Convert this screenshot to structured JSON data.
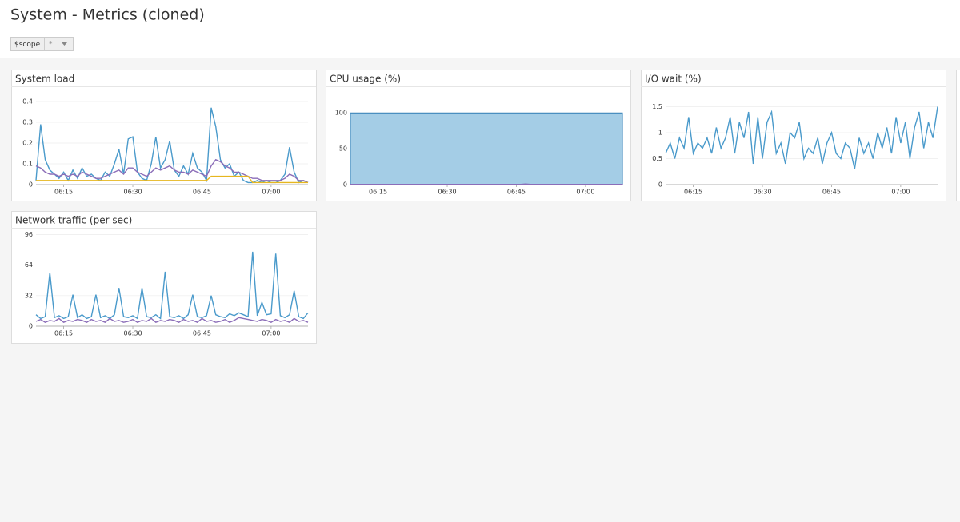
{
  "header": {
    "title": "System - Metrics (cloned)"
  },
  "scope": {
    "label": "$scope",
    "value": "*"
  },
  "chart_data": [
    {
      "type": "line",
      "title": "System load",
      "x": [
        "06:09",
        "06:10",
        "06:11",
        "06:12",
        "06:13",
        "06:14",
        "06:15",
        "06:16",
        "06:17",
        "06:18",
        "06:19",
        "06:20",
        "06:21",
        "06:22",
        "06:23",
        "06:24",
        "06:25",
        "06:26",
        "06:27",
        "06:28",
        "06:29",
        "06:30",
        "06:31",
        "06:32",
        "06:33",
        "06:34",
        "06:35",
        "06:36",
        "06:37",
        "06:38",
        "06:39",
        "06:40",
        "06:41",
        "06:42",
        "06:43",
        "06:44",
        "06:45",
        "06:46",
        "06:47",
        "06:48",
        "06:49",
        "06:50",
        "06:51",
        "06:52",
        "06:53",
        "06:54",
        "06:55",
        "06:56",
        "06:57",
        "06:58",
        "06:59",
        "07:00",
        "07:01",
        "07:02",
        "07:03",
        "07:04",
        "07:05",
        "07:06",
        "07:07",
        "07:08"
      ],
      "xticks": [
        "06:15",
        "06:30",
        "06:45",
        "07:00"
      ],
      "ylim": [
        0,
        0.45
      ],
      "yticks": [
        0,
        0.1,
        0.2,
        0.3,
        0.4
      ],
      "grid": true,
      "series": [
        {
          "color": "#4a9acb",
          "values": [
            0.02,
            0.29,
            0.12,
            0.07,
            0.05,
            0.03,
            0.06,
            0.02,
            0.07,
            0.03,
            0.08,
            0.04,
            0.05,
            0.03,
            0.02,
            0.06,
            0.04,
            0.1,
            0.17,
            0.05,
            0.22,
            0.23,
            0.06,
            0.03,
            0.02,
            0.1,
            0.23,
            0.08,
            0.12,
            0.21,
            0.07,
            0.04,
            0.09,
            0.05,
            0.15,
            0.08,
            0.06,
            0.02,
            0.37,
            0.28,
            0.12,
            0.08,
            0.1,
            0.04,
            0.06,
            0.02,
            0.01,
            0.01,
            0.02,
            0.01,
            0.02,
            0.01,
            0.01,
            0.02,
            0.05,
            0.18,
            0.06,
            0.01,
            0.02,
            0.01
          ]
        },
        {
          "color": "#8b6db8",
          "values": [
            0.09,
            0.08,
            0.06,
            0.05,
            0.05,
            0.04,
            0.05,
            0.04,
            0.05,
            0.04,
            0.06,
            0.05,
            0.04,
            0.03,
            0.03,
            0.04,
            0.05,
            0.06,
            0.07,
            0.05,
            0.08,
            0.08,
            0.06,
            0.05,
            0.04,
            0.06,
            0.08,
            0.07,
            0.08,
            0.09,
            0.07,
            0.06,
            0.06,
            0.05,
            0.07,
            0.06,
            0.05,
            0.04,
            0.09,
            0.12,
            0.11,
            0.09,
            0.08,
            0.06,
            0.06,
            0.05,
            0.04,
            0.03,
            0.03,
            0.02,
            0.02,
            0.02,
            0.02,
            0.02,
            0.03,
            0.05,
            0.04,
            0.02,
            0.02,
            0.01
          ]
        },
        {
          "color": "#e6b61f",
          "values": [
            0.02,
            0.02,
            0.02,
            0.02,
            0.02,
            0.02,
            0.02,
            0.02,
            0.02,
            0.02,
            0.02,
            0.02,
            0.02,
            0.02,
            0.02,
            0.02,
            0.02,
            0.02,
            0.02,
            0.02,
            0.02,
            0.02,
            0.02,
            0.02,
            0.02,
            0.02,
            0.02,
            0.02,
            0.02,
            0.02,
            0.02,
            0.02,
            0.02,
            0.02,
            0.02,
            0.02,
            0.02,
            0.02,
            0.04,
            0.04,
            0.04,
            0.04,
            0.04,
            0.04,
            0.04,
            0.04,
            0.04,
            0.01,
            0.01,
            0.01,
            0.01,
            0.01,
            0.01,
            0.01,
            0.01,
            0.01,
            0.01,
            0.01,
            0.01,
            0.01
          ]
        }
      ]
    },
    {
      "type": "area",
      "title": "CPU usage (%)",
      "x": [
        "06:09",
        "06:10",
        "06:11",
        "06:12",
        "06:13",
        "06:14",
        "06:15",
        "06:16",
        "06:17",
        "06:18",
        "06:19",
        "06:20",
        "06:21",
        "06:22",
        "06:23",
        "06:24",
        "06:25",
        "06:26",
        "06:27",
        "06:28",
        "06:29",
        "06:30",
        "06:31",
        "06:32",
        "06:33",
        "06:34",
        "06:35",
        "06:36",
        "06:37",
        "06:38",
        "06:39",
        "06:40",
        "06:41",
        "06:42",
        "06:43",
        "06:44",
        "06:45",
        "06:46",
        "06:47",
        "06:48",
        "06:49",
        "06:50",
        "06:51",
        "06:52",
        "06:53",
        "06:54",
        "06:55",
        "06:56",
        "06:57",
        "06:58",
        "06:59",
        "07:00",
        "07:01",
        "07:02",
        "07:03",
        "07:04",
        "07:05",
        "07:06",
        "07:07",
        "07:08"
      ],
      "xticks": [
        "06:15",
        "06:30",
        "06:45",
        "07:00"
      ],
      "ylim": [
        0,
        130
      ],
      "yticks": [
        0,
        50,
        100
      ],
      "grid": true,
      "series": [
        {
          "color": "#4a8fc0",
          "fill": "#a4cde6",
          "values": [
            99.5,
            99.5,
            99.5,
            99.5,
            99.5,
            99.5,
            99.5,
            99.5,
            99.5,
            99.5,
            99.5,
            99.5,
            99.5,
            99.5,
            99.5,
            99.5,
            99.5,
            99.5,
            99.5,
            99.5,
            99.5,
            99.5,
            99.5,
            99.5,
            99.5,
            99.5,
            99.5,
            99.5,
            99.5,
            99.5,
            99.5,
            99.5,
            99.5,
            99.5,
            99.5,
            99.5,
            99.5,
            99.5,
            99.5,
            99.5,
            99.5,
            99.5,
            99.5,
            99.5,
            99.5,
            99.5,
            99.5,
            99.5,
            99.5,
            99.5,
            99.5,
            99.5,
            99.5,
            99.5,
            99.5,
            99.5,
            99.5,
            99.5,
            99.5,
            99.5
          ]
        },
        {
          "color": "#8b6db8",
          "fill": "#8b6db8",
          "values": [
            0.5,
            0.5,
            0.5,
            0.5,
            0.5,
            0.5,
            0.5,
            0.5,
            0.5,
            0.5,
            0.5,
            0.5,
            0.5,
            0.5,
            0.5,
            0.5,
            0.5,
            0.5,
            0.5,
            0.5,
            0.5,
            0.5,
            0.5,
            0.5,
            0.5,
            0.5,
            0.5,
            0.5,
            0.5,
            0.5,
            0.5,
            0.5,
            0.5,
            0.5,
            0.5,
            0.5,
            0.5,
            0.5,
            1,
            0.5,
            0.5,
            0.5,
            0.5,
            0.5,
            0.5,
            0.5,
            0.5,
            0.5,
            0.5,
            0.5,
            0.5,
            0.5,
            0.5,
            0.5,
            0.5,
            0.5,
            0.5,
            0.5,
            0.5,
            0.5
          ]
        }
      ]
    },
    {
      "type": "line",
      "title": "I/O wait (%)",
      "x": [
        "06:09",
        "06:10",
        "06:11",
        "06:12",
        "06:13",
        "06:14",
        "06:15",
        "06:16",
        "06:17",
        "06:18",
        "06:19",
        "06:20",
        "06:21",
        "06:22",
        "06:23",
        "06:24",
        "06:25",
        "06:26",
        "06:27",
        "06:28",
        "06:29",
        "06:30",
        "06:31",
        "06:32",
        "06:33",
        "06:34",
        "06:35",
        "06:36",
        "06:37",
        "06:38",
        "06:39",
        "06:40",
        "06:41",
        "06:42",
        "06:43",
        "06:44",
        "06:45",
        "06:46",
        "06:47",
        "06:48",
        "06:49",
        "06:50",
        "06:51",
        "06:52",
        "06:53",
        "06:54",
        "06:55",
        "06:56",
        "06:57",
        "06:58",
        "06:59",
        "07:00",
        "07:01",
        "07:02",
        "07:03",
        "07:04",
        "07:05",
        "07:06",
        "07:07",
        "07:08"
      ],
      "xticks": [
        "06:15",
        "06:30",
        "06:45",
        "07:00"
      ],
      "ylim": [
        0,
        1.8
      ],
      "yticks": [
        0,
        0.5,
        1,
        1.5
      ],
      "grid": true,
      "series": [
        {
          "color": "#4a9acb",
          "values": [
            0.6,
            0.8,
            0.5,
            0.9,
            0.7,
            1.3,
            0.6,
            0.8,
            0.7,
            0.9,
            0.6,
            1.1,
            0.7,
            0.9,
            1.3,
            0.6,
            1.2,
            0.9,
            1.4,
            0.4,
            1.3,
            0.5,
            1.2,
            1.4,
            0.6,
            0.8,
            0.4,
            1.0,
            0.9,
            1.2,
            0.5,
            0.7,
            0.6,
            0.9,
            0.4,
            0.8,
            1.0,
            0.6,
            0.5,
            0.8,
            0.7,
            0.3,
            0.9,
            0.6,
            0.8,
            0.5,
            1.0,
            0.7,
            1.1,
            0.6,
            1.3,
            0.8,
            1.2,
            0.5,
            1.1,
            1.4,
            0.7,
            1.2,
            0.9,
            1.5
          ]
        }
      ]
    },
    {
      "type": "line",
      "title": "Network traffic (per sec)",
      "x": [
        "06:09",
        "06:10",
        "06:11",
        "06:12",
        "06:13",
        "06:14",
        "06:15",
        "06:16",
        "06:17",
        "06:18",
        "06:19",
        "06:20",
        "06:21",
        "06:22",
        "06:23",
        "06:24",
        "06:25",
        "06:26",
        "06:27",
        "06:28",
        "06:29",
        "06:30",
        "06:31",
        "06:32",
        "06:33",
        "06:34",
        "06:35",
        "06:36",
        "06:37",
        "06:38",
        "06:39",
        "06:40",
        "06:41",
        "06:42",
        "06:43",
        "06:44",
        "06:45",
        "06:46",
        "06:47",
        "06:48",
        "06:49",
        "06:50",
        "06:51",
        "06:52",
        "06:53",
        "06:54",
        "06:55",
        "06:56",
        "06:57",
        "06:58",
        "06:59",
        "07:00",
        "07:01",
        "07:02",
        "07:03",
        "07:04",
        "07:05",
        "07:06",
        "07:07",
        "07:08"
      ],
      "xticks": [
        "06:15",
        "06:30",
        "06:45",
        "07:00"
      ],
      "ylim": [
        0,
        98
      ],
      "yticks": [
        0,
        32,
        64,
        96
      ],
      "grid": true,
      "series": [
        {
          "color": "#4a9acb",
          "values": [
            12,
            8,
            10,
            56,
            9,
            11,
            8,
            10,
            33,
            9,
            12,
            8,
            10,
            33,
            9,
            11,
            8,
            12,
            40,
            10,
            9,
            11,
            8,
            40,
            10,
            9,
            12,
            8,
            57,
            10,
            9,
            11,
            8,
            12,
            33,
            10,
            9,
            11,
            32,
            12,
            10,
            9,
            13,
            11,
            14,
            12,
            10,
            78,
            11,
            25,
            12,
            13,
            76,
            11,
            9,
            12,
            37,
            10,
            8,
            14
          ]
        },
        {
          "color": "#8b6db8",
          "values": [
            5,
            7,
            4,
            6,
            5,
            8,
            4,
            6,
            5,
            7,
            6,
            4,
            7,
            5,
            6,
            4,
            8,
            5,
            6,
            4,
            5,
            7,
            4,
            6,
            5,
            8,
            4,
            6,
            5,
            7,
            6,
            4,
            7,
            5,
            6,
            4,
            8,
            5,
            6,
            4,
            5,
            7,
            4,
            6,
            9,
            8,
            7,
            6,
            5,
            7,
            6,
            4,
            7,
            5,
            6,
            4,
            8,
            5,
            6,
            4
          ]
        }
      ]
    }
  ]
}
